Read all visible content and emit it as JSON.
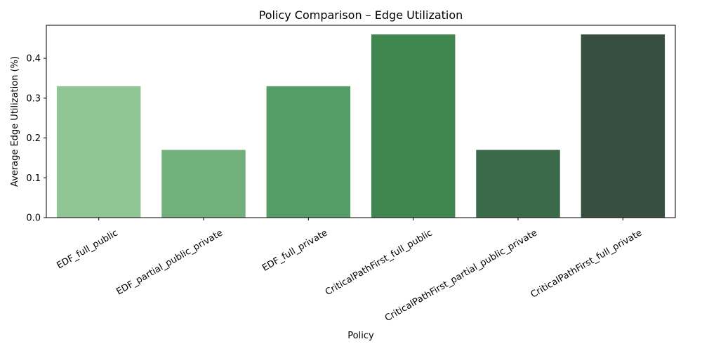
{
  "chart_data": {
    "type": "bar",
    "title": "Policy Comparison – Edge Utilization",
    "xlabel": "Policy",
    "ylabel": "Average Edge Utilization (%)",
    "categories": [
      "EDF_full_public",
      "EDF_partial_public_private",
      "EDF_full_private",
      "CriticalPathFirst_full_public",
      "CriticalPathFirst_partial_public_private",
      "CriticalPathFirst_full_private"
    ],
    "values": [
      0.33,
      0.17,
      0.33,
      0.46,
      0.17,
      0.46
    ],
    "colors": [
      "#91c694",
      "#72b07c",
      "#549d67",
      "#40874f",
      "#3b6a4a",
      "#364f3f"
    ],
    "ylim": [
      0,
      0.483
    ],
    "yticks": [
      "0.0",
      "0.1",
      "0.2",
      "0.3",
      "0.4"
    ],
    "grid": false,
    "legend": "none",
    "xtick_rotation": 30
  }
}
